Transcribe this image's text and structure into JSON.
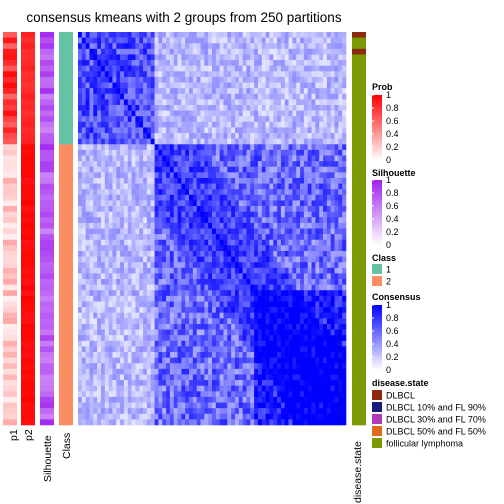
{
  "chart_data": {
    "type": "heatmap",
    "title": "consensus kmeans with 2 groups from 250 partitions",
    "n_samples": 70,
    "sample_classes": [
      1,
      1,
      1,
      1,
      1,
      1,
      1,
      1,
      1,
      1,
      1,
      1,
      1,
      1,
      1,
      1,
      1,
      1,
      1,
      1,
      2,
      2,
      2,
      2,
      2,
      2,
      2,
      2,
      2,
      2,
      2,
      2,
      2,
      2,
      2,
      2,
      2,
      2,
      2,
      2,
      2,
      2,
      2,
      2,
      2,
      2,
      2,
      2,
      2,
      2,
      2,
      2,
      2,
      2,
      2,
      2,
      2,
      2,
      2,
      2,
      2,
      2,
      2,
      2,
      2,
      2,
      2,
      2,
      2,
      2
    ],
    "sample_disease": [
      "D",
      "F",
      "F",
      "D",
      "F",
      "F",
      "F",
      "F",
      "F",
      "F",
      "F",
      "F",
      "F",
      "F",
      "F",
      "F",
      "F",
      "F",
      "F",
      "F",
      "F",
      "F",
      "F",
      "F",
      "F",
      "F",
      "F",
      "F",
      "F",
      "F",
      "F",
      "F",
      "F",
      "F",
      "F",
      "F",
      "F",
      "F",
      "F",
      "F",
      "F",
      "F",
      "F",
      "F",
      "F",
      "F",
      "F",
      "F",
      "F",
      "F",
      "F",
      "F",
      "F",
      "F",
      "F",
      "F",
      "F",
      "F",
      "F",
      "F",
      "F",
      "F",
      "F",
      "F",
      "F",
      "F",
      "F",
      "F",
      "F",
      "F"
    ],
    "annotation_columns": [
      {
        "label": "p1"
      },
      {
        "label": "p2"
      },
      {
        "label": "Silhouette"
      },
      {
        "label": "Class"
      }
    ],
    "right_annotation_label": "disease.state",
    "legends": {
      "prob": {
        "title": "Prob",
        "ticks": [
          "1",
          "0.8",
          "0.6",
          "0.4",
          "0.2",
          "0"
        ],
        "color_high": "#ff0000",
        "color_low": "#ffffff"
      },
      "silhouette": {
        "title": "Silhouette",
        "ticks": [
          "1",
          "0.8",
          "0.6",
          "0.4",
          "0.2",
          "0"
        ],
        "color_high": "#a020f0",
        "color_low": "#ffffff"
      },
      "class": {
        "title": "Class",
        "items": [
          {
            "label": "1",
            "color": "#66c2a5"
          },
          {
            "label": "2",
            "color": "#fc8d62"
          }
        ]
      },
      "consensus": {
        "title": "Consensus",
        "ticks": [
          "1",
          "0.8",
          "0.6",
          "0.4",
          "0.2",
          "0"
        ],
        "color_high": "#0000ff",
        "color_low": "#ffffff"
      },
      "disease_state": {
        "title": "disease.state",
        "items": [
          {
            "label": "DLBCL",
            "color": "#8b2a0e"
          },
          {
            "label": "DLBCL 10% and FL 90%",
            "color": "#1a1a7a"
          },
          {
            "label": "DLBCL 30% and FL 70%",
            "color": "#b03ab8"
          },
          {
            "label": "DLBCL 50% and FL 50%",
            "color": "#e06a1a"
          },
          {
            "label": "follicular lymphoma",
            "color": "#7a9a00"
          }
        ]
      }
    }
  }
}
